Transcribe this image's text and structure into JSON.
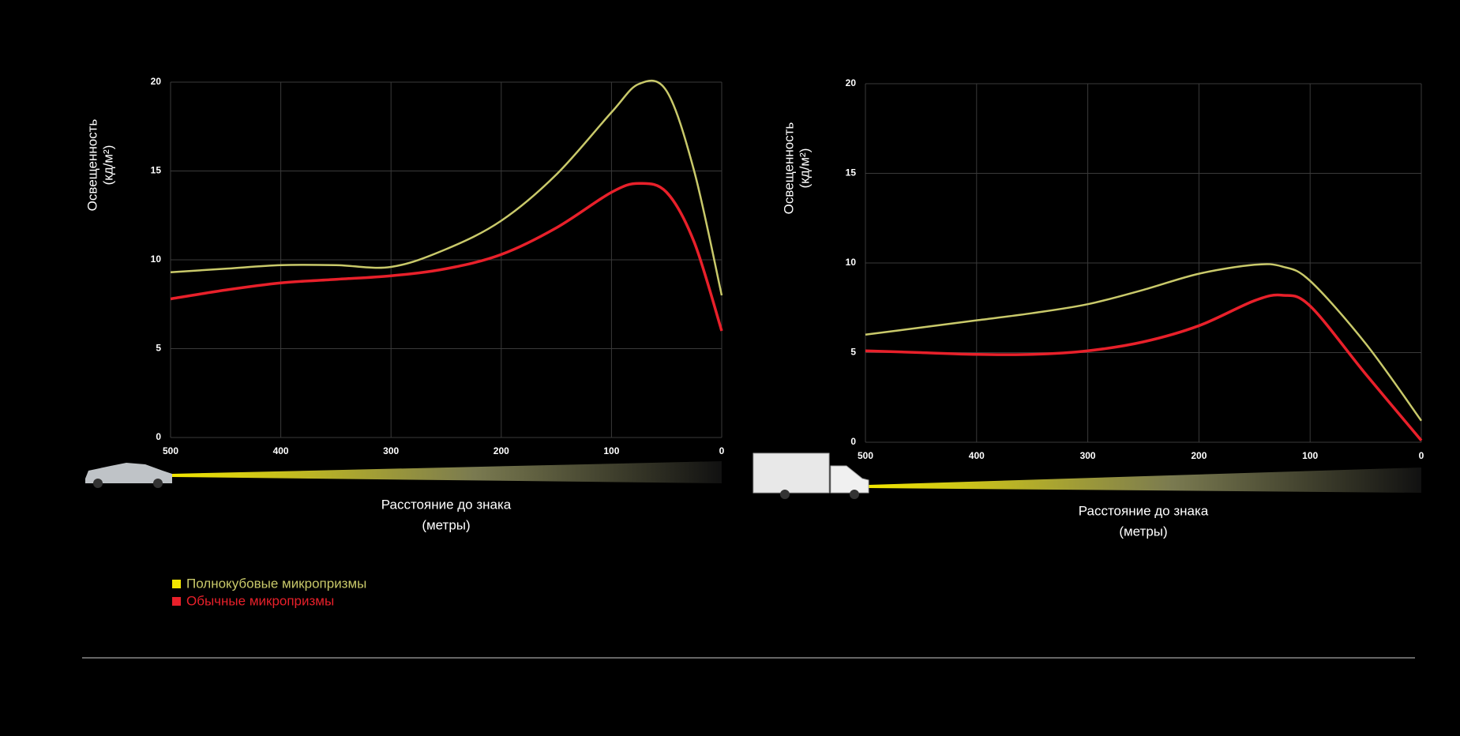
{
  "chart_data": [
    {
      "type": "line",
      "ylabel": [
        "Освещенность",
        "(кд/м²)"
      ],
      "xlabel": [
        "Расстояние до знака",
        "(метры)"
      ],
      "x": [
        500,
        450,
        400,
        350,
        300,
        250,
        200,
        150,
        100,
        75,
        50,
        25,
        0
      ],
      "xlim": [
        500,
        0
      ],
      "xticks": [
        500,
        400,
        300,
        200,
        100,
        0
      ],
      "ylim": [
        0,
        20
      ],
      "yticks": [
        0,
        5,
        10,
        15,
        20
      ],
      "grid": true,
      "series": [
        {
          "name": "Полнокубовые микропризмы",
          "color": "#c9c96a",
          "values": [
            9.3,
            9.5,
            9.7,
            9.7,
            9.6,
            10.6,
            12.2,
            14.8,
            18.3,
            19.9,
            19.5,
            15,
            8
          ]
        },
        {
          "name": "Обычные микропризмы",
          "color": "#e8202a",
          "values": [
            7.8,
            8.3,
            8.7,
            8.9,
            9.1,
            9.5,
            10.3,
            11.8,
            13.8,
            14.3,
            13.8,
            11,
            6
          ]
        }
      ]
    },
    {
      "type": "line",
      "ylabel": [
        "Освещенность",
        "(кд/м²)"
      ],
      "xlabel": [
        "Расстояние до знака",
        "(метры)"
      ],
      "x": [
        500,
        450,
        400,
        350,
        300,
        250,
        200,
        150,
        125,
        100,
        50,
        0
      ],
      "xlim": [
        500,
        0
      ],
      "xticks": [
        500,
        400,
        300,
        200,
        100,
        0
      ],
      "ylim": [
        0,
        20
      ],
      "yticks": [
        0,
        5,
        10,
        15,
        20
      ],
      "grid": true,
      "series": [
        {
          "color": "#c9c96a",
          "values": [
            6.0,
            6.4,
            6.8,
            7.2,
            7.7,
            8.5,
            9.4,
            9.9,
            9.8,
            9.0,
            5.5,
            1.2
          ]
        },
        {
          "color": "#e8202a",
          "values": [
            5.1,
            5.0,
            4.9,
            4.9,
            5.1,
            5.6,
            6.5,
            7.9,
            8.2,
            7.6,
            3.8,
            0.1
          ]
        }
      ]
    }
  ]
}
